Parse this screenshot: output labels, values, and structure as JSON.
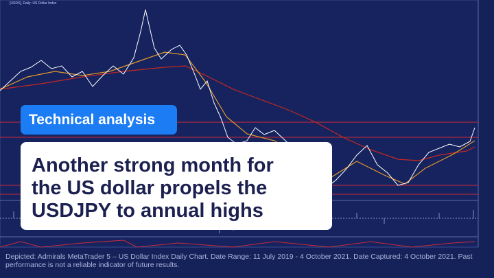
{
  "chart_label": "[USDX], Daily: US Dollar Index",
  "badge": "Technical analysis",
  "headline": "Another strong month for the US dollar propels the USDJPY to annual highs",
  "caption": "Depicted: Admirals MetaTrader 5 – US Dollar Index Daily Chart. Date Range: 11 July 2019 - 4 October 2021. Date Captured: 4 October 2021. Past performance is not a reliable indicator of future results."
}
